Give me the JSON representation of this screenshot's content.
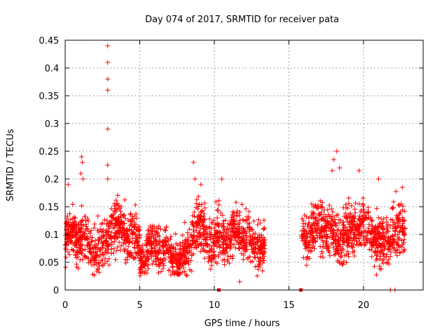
{
  "chart_data": {
    "type": "scatter",
    "title": "Day 074 of 2017, SRMTID for receiver pata",
    "xlabel": "GPS time / hours",
    "ylabel": "SRMTID / TECUs",
    "xlim": [
      0,
      24
    ],
    "ylim": [
      0,
      0.45
    ],
    "xticks": [
      "0",
      "5",
      "10",
      "15",
      "20"
    ],
    "yticks": [
      "0",
      "0.05",
      "0.1",
      "0.15",
      "0.2",
      "0.25",
      "0.3",
      "0.35",
      "0.4",
      "0.45"
    ],
    "grid": true,
    "marker": "+",
    "color": "#ff0000",
    "outliers": [
      {
        "x": 2.85,
        "y": 0.44
      },
      {
        "x": 2.85,
        "y": 0.41
      },
      {
        "x": 2.85,
        "y": 0.38
      },
      {
        "x": 2.85,
        "y": 0.36
      },
      {
        "x": 2.85,
        "y": 0.29
      },
      {
        "x": 2.85,
        "y": 0.225
      },
      {
        "x": 2.85,
        "y": 0.2
      },
      {
        "x": 1.1,
        "y": 0.24
      },
      {
        "x": 1.15,
        "y": 0.23
      },
      {
        "x": 1.05,
        "y": 0.21
      },
      {
        "x": 1.2,
        "y": 0.2
      },
      {
        "x": 8.6,
        "y": 0.23
      },
      {
        "x": 8.7,
        "y": 0.2
      },
      {
        "x": 9.1,
        "y": 0.19
      },
      {
        "x": 18.2,
        "y": 0.25
      },
      {
        "x": 18.0,
        "y": 0.235
      },
      {
        "x": 18.4,
        "y": 0.22
      },
      {
        "x": 17.9,
        "y": 0.215
      },
      {
        "x": 19.7,
        "y": 0.215
      },
      {
        "x": 21.0,
        "y": 0.2
      },
      {
        "x": 22.6,
        "y": 0.185
      },
      {
        "x": 0.2,
        "y": 0.19
      },
      {
        "x": 10.5,
        "y": 0.2
      },
      {
        "x": 11.7,
        "y": 0.015
      },
      {
        "x": 21.8,
        "y": 0.0
      },
      {
        "x": 22.1,
        "y": 0.0
      }
    ],
    "zero_markers": [
      10.3,
      15.8
    ],
    "segments": [
      {
        "x_start": 0.0,
        "x_end": 3.0,
        "mean": 0.088,
        "spread": 0.045,
        "count": 360
      },
      {
        "x_start": 3.0,
        "x_end": 5.0,
        "mean": 0.1,
        "spread": 0.05,
        "count": 250
      },
      {
        "x_start": 5.0,
        "x_end": 8.5,
        "mean": 0.068,
        "spread": 0.04,
        "count": 420
      },
      {
        "x_start": 8.5,
        "x_end": 11.0,
        "mean": 0.1,
        "spread": 0.05,
        "count": 300
      },
      {
        "x_start": 11.0,
        "x_end": 13.4,
        "mean": 0.09,
        "spread": 0.045,
        "count": 290
      },
      {
        "x_start": 15.8,
        "x_end": 18.0,
        "mean": 0.105,
        "spread": 0.045,
        "count": 260
      },
      {
        "x_start": 18.0,
        "x_end": 20.5,
        "mean": 0.105,
        "spread": 0.05,
        "count": 300
      },
      {
        "x_start": 20.5,
        "x_end": 22.8,
        "mean": 0.1,
        "spread": 0.05,
        "count": 280
      }
    ]
  }
}
